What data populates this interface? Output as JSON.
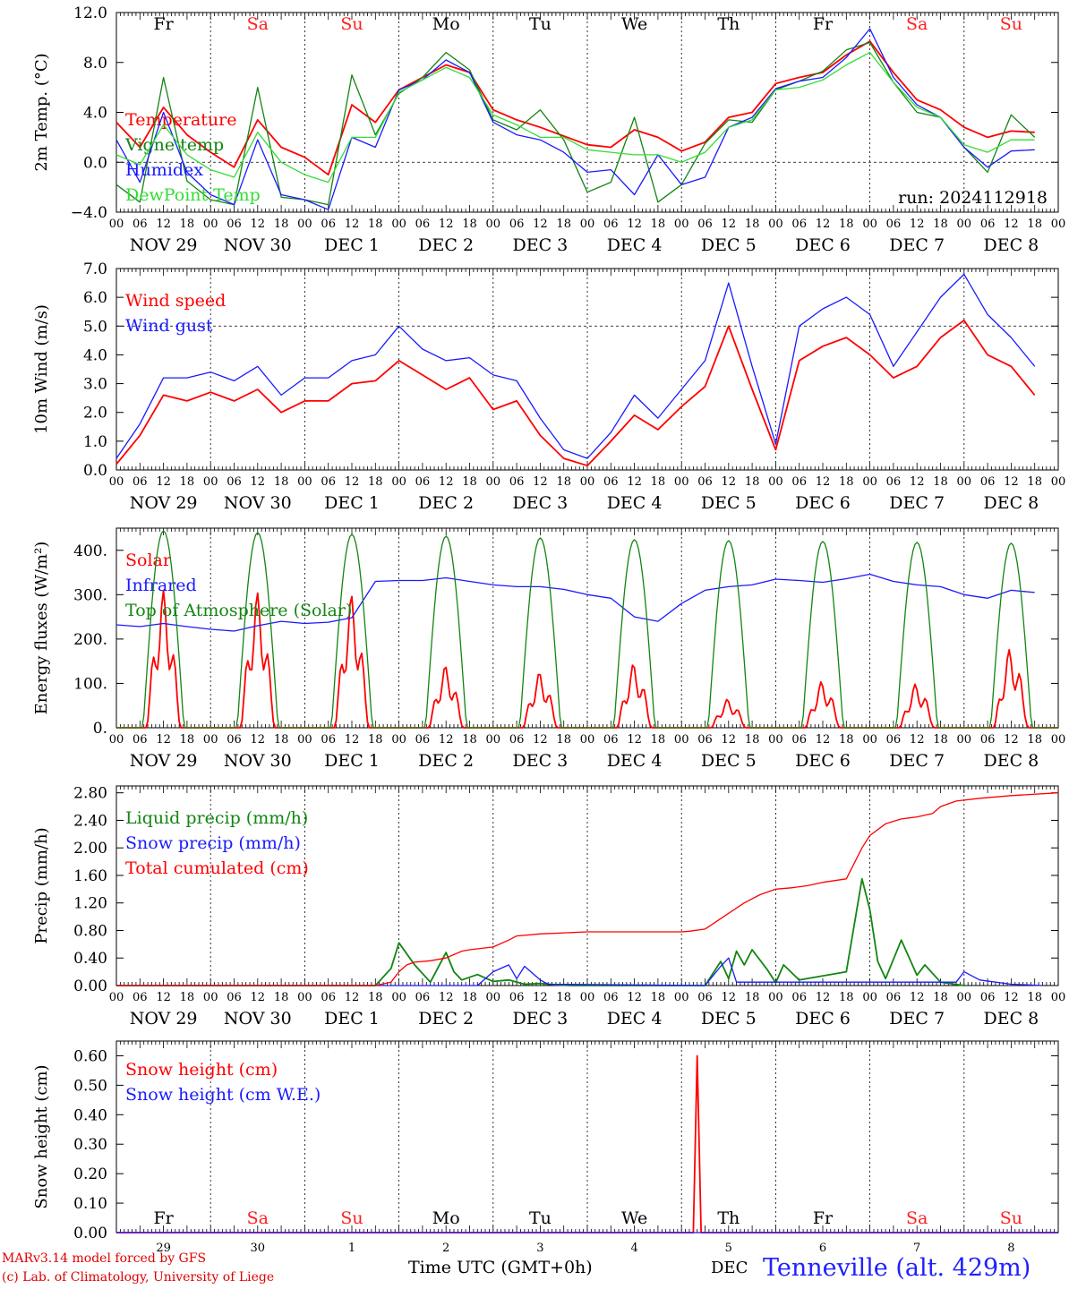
{
  "colors": {
    "red": "#ff0000",
    "green": "#128512",
    "blue": "#1a1aff",
    "lightgreen": "#33dd33",
    "weekend": "#ff2020",
    "weekday": "#000000"
  },
  "days": [
    "Fr",
    "Sa",
    "Su",
    "Mo",
    "Tu",
    "We",
    "Th",
    "Fr",
    "Sa",
    "Su"
  ],
  "weekend_flags": [
    false,
    true,
    true,
    false,
    false,
    false,
    false,
    false,
    true,
    true
  ],
  "hour_ticks": [
    "00",
    "06",
    "12",
    "18"
  ],
  "day_labels": [
    "NOV 29",
    "NOV 30",
    "DEC  1",
    "DEC  2",
    "DEC  3",
    "DEC  4",
    "DEC  5",
    "DEC  6",
    "DEC  7",
    "DEC  8"
  ],
  "bottom_day_numbers": [
    "29",
    "30",
    "1",
    "2",
    "3",
    "4",
    "5",
    "6",
    "7",
    "8"
  ],
  "footer": {
    "credit_line1": "MARv3.14 model forced by GFS",
    "credit_line2": "(c) Lab. of Climatology, University of Liege",
    "time_label": "Time UTC (GMT+0h)",
    "month_label": "DEC",
    "station": "Tenneville (alt. 429m)"
  },
  "chart_data": [
    {
      "type": "line",
      "ylabel": "2m Temp. (°C)",
      "ylim": [
        -4,
        12
      ],
      "yticks": [
        "−4.0",
        "0.0",
        "4.0",
        "8.0",
        "12.0"
      ],
      "dashed_y": [
        0
      ],
      "x_unit": "hours since NOV 29 00 UTC",
      "annotation": "run: 2024112918",
      "legend_placement": "left",
      "series": [
        {
          "name": "Temperature",
          "color": "#ff0000",
          "x": [
            0,
            6,
            12,
            18,
            24,
            30,
            36,
            42,
            48,
            54,
            60,
            66,
            72,
            78,
            84,
            90,
            96,
            102,
            108,
            114,
            120,
            126,
            132,
            138,
            144,
            150,
            156,
            162,
            168,
            174,
            180,
            186,
            192,
            198,
            204,
            210,
            216,
            222,
            228,
            234
          ],
          "y": [
            3.2,
            1.2,
            4.4,
            2.2,
            0.8,
            -0.4,
            3.4,
            1.2,
            0.4,
            -1.0,
            4.6,
            3.2,
            5.8,
            6.8,
            7.8,
            7.2,
            4.2,
            3.4,
            2.8,
            2.1,
            1.4,
            1.2,
            2.6,
            2.0,
            0.9,
            1.6,
            3.6,
            4.0,
            6.3,
            6.8,
            7.2,
            8.6,
            9.7,
            7.2,
            5.0,
            4.2,
            2.8,
            2.0,
            2.5,
            2.4
          ]
        },
        {
          "name": "Vigne temp",
          "color": "#128512",
          "x": [
            0,
            6,
            12,
            18,
            24,
            30,
            36,
            42,
            48,
            54,
            60,
            66,
            72,
            78,
            84,
            90,
            96,
            102,
            108,
            114,
            120,
            126,
            132,
            138,
            144,
            150,
            156,
            162,
            168,
            174,
            180,
            186,
            192,
            198,
            204,
            210,
            216,
            222,
            228,
            234
          ],
          "y": [
            -1.8,
            -3.2,
            6.8,
            -1.5,
            -3.0,
            -3.4,
            6.0,
            -2.8,
            -3.0,
            -3.4,
            7.0,
            2.2,
            5.5,
            6.8,
            8.8,
            7.4,
            3.4,
            2.6,
            4.2,
            1.8,
            -2.4,
            -1.6,
            3.6,
            -3.2,
            -1.8,
            1.5,
            3.4,
            3.2,
            5.8,
            6.5,
            7.3,
            9.0,
            9.6,
            6.4,
            4.0,
            3.6,
            1.2,
            -0.8,
            3.8,
            2.0
          ]
        },
        {
          "name": "Humidex",
          "color": "#1a1aff",
          "x": [
            0,
            6,
            12,
            18,
            24,
            30,
            36,
            42,
            48,
            54,
            60,
            66,
            72,
            78,
            84,
            90,
            96,
            102,
            108,
            114,
            120,
            126,
            132,
            138,
            144,
            150,
            156,
            162,
            168,
            174,
            180,
            186,
            192,
            198,
            204,
            210,
            216,
            222,
            228,
            234
          ],
          "y": [
            1.8,
            -1.6,
            4.0,
            -0.8,
            -2.6,
            -3.4,
            1.8,
            -2.6,
            -3.0,
            -3.8,
            2.0,
            1.2,
            5.8,
            6.6,
            8.2,
            7.2,
            3.2,
            2.2,
            1.8,
            0.8,
            -0.8,
            -0.6,
            -2.6,
            0.6,
            -1.8,
            -1.2,
            2.8,
            3.6,
            5.9,
            6.5,
            6.8,
            8.4,
            10.7,
            6.8,
            4.6,
            3.6,
            1.2,
            -0.4,
            0.9,
            1.0
          ]
        },
        {
          "name": "DewPoint Temp",
          "color": "#33dd33",
          "x": [
            0,
            6,
            12,
            18,
            24,
            30,
            36,
            42,
            48,
            54,
            60,
            66,
            72,
            78,
            84,
            90,
            96,
            102,
            108,
            114,
            120,
            126,
            132,
            138,
            144,
            150,
            156,
            162,
            168,
            174,
            180,
            186,
            192,
            198,
            204,
            210,
            216,
            222,
            228,
            234
          ],
          "y": [
            0.6,
            -0.2,
            3.0,
            0.6,
            -0.6,
            -1.2,
            2.4,
            0.0,
            -1.0,
            -1.6,
            2.0,
            2.0,
            5.6,
            6.6,
            7.6,
            6.8,
            3.8,
            3.0,
            2.0,
            2.0,
            1.0,
            0.8,
            0.6,
            0.6,
            0.0,
            0.8,
            2.8,
            3.4,
            5.8,
            6.0,
            6.6,
            7.8,
            8.8,
            6.4,
            4.4,
            3.6,
            1.4,
            0.8,
            1.8,
            1.8
          ]
        }
      ]
    },
    {
      "type": "line",
      "ylabel": "10m Wind (m/s)",
      "ylim": [
        0,
        7
      ],
      "yticks": [
        "0.0",
        "1.0",
        "2.0",
        "3.0",
        "4.0",
        "5.0",
        "6.0",
        "7.0"
      ],
      "dashed_y": [
        5
      ],
      "legend_placement": "left",
      "series": [
        {
          "name": "Wind speed",
          "color": "#ff0000",
          "x": [
            0,
            6,
            12,
            18,
            24,
            30,
            36,
            42,
            48,
            54,
            60,
            66,
            72,
            78,
            84,
            90,
            96,
            102,
            108,
            114,
            120,
            126,
            132,
            138,
            144,
            150,
            156,
            162,
            168,
            174,
            180,
            186,
            192,
            198,
            204,
            210,
            216,
            222,
            228,
            234
          ],
          "y": [
            0.2,
            1.2,
            2.6,
            2.4,
            2.7,
            2.4,
            2.8,
            2.0,
            2.4,
            2.4,
            3.0,
            3.1,
            3.8,
            3.3,
            2.8,
            3.2,
            2.1,
            2.4,
            1.2,
            0.4,
            0.15,
            1.0,
            1.9,
            1.4,
            2.2,
            2.9,
            5.0,
            2.8,
            0.7,
            3.8,
            4.3,
            4.6,
            4.0,
            3.2,
            3.6,
            4.6,
            5.2,
            4.0,
            3.6,
            2.6
          ]
        },
        {
          "name": "Wind gust",
          "color": "#1a1aff",
          "x": [
            0,
            6,
            12,
            18,
            24,
            30,
            36,
            42,
            48,
            54,
            60,
            66,
            72,
            78,
            84,
            90,
            96,
            102,
            108,
            114,
            120,
            126,
            132,
            138,
            144,
            150,
            156,
            162,
            168,
            174,
            180,
            186,
            192,
            198,
            204,
            210,
            216,
            222,
            228,
            234
          ],
          "y": [
            0.4,
            1.6,
            3.2,
            3.2,
            3.4,
            3.1,
            3.6,
            2.6,
            3.2,
            3.2,
            3.8,
            4.0,
            5.0,
            4.2,
            3.8,
            3.9,
            3.3,
            3.1,
            1.8,
            0.7,
            0.4,
            1.3,
            2.6,
            1.8,
            2.8,
            3.8,
            6.5,
            3.6,
            0.9,
            5.0,
            5.6,
            6.0,
            5.4,
            3.6,
            4.8,
            6.0,
            6.8,
            5.4,
            4.6,
            3.6
          ]
        }
      ]
    },
    {
      "type": "line",
      "ylabel": "Energy fluxes (W/m²)",
      "ylim": [
        0,
        450
      ],
      "yticks": [
        "0.",
        "100.",
        "200.",
        "300.",
        "400."
      ],
      "dashed_y": [],
      "legend_placement": "left",
      "series": [
        {
          "name": "Solar",
          "color": "#ff0000",
          "peaks": [
            {
              "x": 12,
              "y": 310
            },
            {
              "x": 36,
              "y": 305
            },
            {
              "x": 60,
              "y": 300
            },
            {
              "x": 84,
              "y": 140
            },
            {
              "x": 108,
              "y": 125
            },
            {
              "x": 132,
              "y": 145
            },
            {
              "x": 156,
              "y": 65
            },
            {
              "x": 180,
              "y": 105
            },
            {
              "x": 204,
              "y": 100
            },
            {
              "x": 228,
              "y": 180
            }
          ]
        },
        {
          "name": "Infrared",
          "color": "#1a1aff",
          "x": [
            0,
            6,
            12,
            18,
            24,
            30,
            36,
            42,
            48,
            54,
            60,
            66,
            72,
            78,
            84,
            90,
            96,
            102,
            108,
            114,
            120,
            126,
            132,
            138,
            144,
            150,
            156,
            162,
            168,
            174,
            180,
            186,
            192,
            198,
            204,
            210,
            216,
            222,
            228,
            234
          ],
          "y": [
            232,
            228,
            235,
            228,
            222,
            218,
            230,
            240,
            235,
            238,
            248,
            330,
            332,
            332,
            338,
            330,
            322,
            318,
            318,
            312,
            300,
            292,
            250,
            240,
            280,
            310,
            318,
            322,
            335,
            332,
            328,
            336,
            346,
            330,
            322,
            318,
            300,
            292,
            310,
            305
          ]
        },
        {
          "name": "Top of Atmosphere (Solar)",
          "color": "#128512",
          "peaks": [
            {
              "x": 12,
              "y": 444
            },
            {
              "x": 36,
              "y": 440
            },
            {
              "x": 60,
              "y": 436
            },
            {
              "x": 84,
              "y": 432
            },
            {
              "x": 108,
              "y": 428
            },
            {
              "x": 132,
              "y": 424
            },
            {
              "x": 156,
              "y": 422
            },
            {
              "x": 180,
              "y": 420
            },
            {
              "x": 204,
              "y": 418
            },
            {
              "x": 228,
              "y": 416
            }
          ]
        }
      ]
    },
    {
      "type": "line",
      "ylabel": "Precip (mm/h)",
      "ylim": [
        0,
        2.9
      ],
      "yticks": [
        "0.00",
        "0.40",
        "0.80",
        "1.20",
        "1.60",
        "2.00",
        "2.40",
        "2.80"
      ],
      "dashed_y": [],
      "legend_placement": "left",
      "series": [
        {
          "name": "Liquid precip (mm/h)",
          "color": "#128512",
          "x": [
            0,
            66,
            70,
            72,
            76,
            80,
            84,
            86,
            88,
            92,
            96,
            100,
            104,
            108,
            112,
            116,
            120,
            150,
            154,
            156,
            158,
            160,
            162,
            166,
            168,
            170,
            174,
            186,
            190,
            192,
            194,
            196,
            200,
            204,
            206,
            210,
            216
          ],
          "y": [
            0,
            0,
            0.25,
            0.62,
            0.3,
            0.05,
            0.48,
            0.2,
            0.08,
            0.16,
            0.06,
            0.08,
            0.02,
            0.03,
            0.01,
            0,
            0,
            0,
            0.35,
            0.1,
            0.5,
            0.3,
            0.52,
            0.22,
            0.04,
            0.3,
            0.08,
            0.2,
            1.55,
            1.1,
            0.35,
            0.1,
            0.66,
            0.15,
            0.3,
            0.05,
            0
          ]
        },
        {
          "name": "Snow precip (mm/h)",
          "color": "#1a1aff",
          "x": [
            0,
            92,
            96,
            100,
            102,
            104,
            108,
            110,
            150,
            154,
            156,
            158,
            214,
            216,
            220,
            228,
            236
          ],
          "y": [
            0,
            0,
            0.2,
            0.3,
            0.1,
            0.28,
            0.08,
            0.02,
            0,
            0.28,
            0.4,
            0.05,
            0.05,
            0.2,
            0.08,
            0.02,
            0
          ]
        },
        {
          "name": "Total cumulated (cm)",
          "color": "#ff0000",
          "x": [
            0,
            66,
            70,
            72,
            74,
            76,
            80,
            84,
            88,
            90,
            96,
            100,
            102,
            108,
            120,
            144,
            146,
            150,
            156,
            160,
            164,
            168,
            172,
            176,
            180,
            186,
            190,
            192,
            196,
            200,
            204,
            208,
            210,
            214,
            220,
            228,
            240
          ],
          "y": [
            0,
            0,
            0.05,
            0.2,
            0.3,
            0.34,
            0.36,
            0.4,
            0.5,
            0.52,
            0.56,
            0.66,
            0.72,
            0.75,
            0.78,
            0.78,
            0.79,
            0.82,
            1.05,
            1.2,
            1.32,
            1.4,
            1.42,
            1.45,
            1.5,
            1.55,
            2.0,
            2.18,
            2.35,
            2.42,
            2.45,
            2.5,
            2.6,
            2.68,
            2.72,
            2.76,
            2.8
          ]
        }
      ]
    },
    {
      "type": "line",
      "ylabel": "Snow height (cm)",
      "ylim": [
        0,
        0.65
      ],
      "yticks": [
        "0.00",
        "0.10",
        "0.20",
        "0.30",
        "0.40",
        "0.50",
        "0.60"
      ],
      "dashed_y": [],
      "legend_placement": "left",
      "series": [
        {
          "name": "Snow height (cm)",
          "color": "#ff0000",
          "x": [
            0,
            145,
            147,
            148,
            149,
            240
          ],
          "y": [
            0,
            0,
            0,
            0.6,
            0,
            0
          ]
        },
        {
          "name": "Snow height (cm W.E.)",
          "color": "#1a1aff",
          "x": [
            0,
            240
          ],
          "y": [
            0,
            0
          ]
        }
      ]
    }
  ]
}
